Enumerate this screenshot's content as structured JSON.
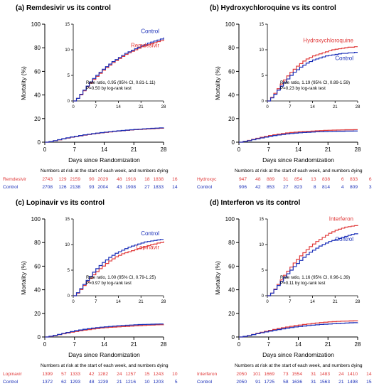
{
  "colors": {
    "treatment": "#e03a3a",
    "control": "#1a2fb8",
    "axis": "#000000"
  },
  "chart_data": [
    {
      "type": "line",
      "title": "(a) Remdesivir vs its control",
      "xlabel": "Days since Randomization",
      "ylabel": "Mortality (%)",
      "xlim": [
        0,
        28
      ],
      "ylim": [
        0,
        100
      ],
      "xticks": [
        "0",
        "7",
        "14",
        "21",
        "28"
      ],
      "yticks": [
        "0",
        "20",
        "40",
        "60",
        "80",
        "100"
      ],
      "inset": {
        "xlim": [
          0,
          28
        ],
        "ylim": [
          0,
          15
        ],
        "xticks": [
          "0",
          "7",
          "14",
          "21",
          "28"
        ],
        "yticks": [
          "0",
          "5",
          "10",
          "15"
        ]
      },
      "annotation": [
        "Rate ratio, 0.95 (95% CI, 0.81-1.11)",
        "P=0.50 by log-rank test"
      ],
      "legend": {
        "treatment": "Remdesivir",
        "control": "Control",
        "treatment_pos": "below",
        "control_pos": "above"
      },
      "series": [
        {
          "name": "Remdesivir",
          "role": "treatment",
          "x": [
            0,
            1,
            2,
            3,
            4,
            5,
            6,
            7,
            8,
            9,
            10,
            11,
            12,
            13,
            14,
            15,
            16,
            17,
            18,
            19,
            20,
            21,
            22,
            23,
            24,
            25,
            26,
            27,
            28
          ],
          "y": [
            0,
            0.5,
            1.2,
            2.0,
            2.8,
            3.5,
            4.2,
            4.8,
            5.4,
            6.0,
            6.5,
            7.0,
            7.5,
            7.9,
            8.3,
            8.7,
            9.1,
            9.4,
            9.7,
            10.0,
            10.3,
            10.6,
            10.8,
            11.0,
            11.2,
            11.4,
            11.6,
            11.8,
            12.0
          ]
        },
        {
          "name": "Control",
          "role": "control",
          "x": [
            0,
            1,
            2,
            3,
            4,
            5,
            6,
            7,
            8,
            9,
            10,
            11,
            12,
            13,
            14,
            15,
            16,
            17,
            18,
            19,
            20,
            21,
            22,
            23,
            24,
            25,
            26,
            27,
            28
          ],
          "y": [
            0,
            0.5,
            1.3,
            2.1,
            2.9,
            3.7,
            4.4,
            5.0,
            5.6,
            6.2,
            6.7,
            7.2,
            7.7,
            8.1,
            8.5,
            8.9,
            9.3,
            9.6,
            9.9,
            10.2,
            10.5,
            10.8,
            11.0,
            11.3,
            11.5,
            11.7,
            11.9,
            12.1,
            12.4
          ]
        }
      ],
      "risk_table": {
        "header": "Numbers at risk at the start of each week, and numbers dying",
        "rows": [
          {
            "label": "Remdesivir",
            "role": "treatment",
            "values": [
              "2743",
              "129",
              "2159",
              "90",
              "2029",
              "48",
              "1918",
              "18",
              "1838",
              "16"
            ]
          },
          {
            "label": "Control",
            "role": "control",
            "values": [
              "2708",
              "126",
              "2138",
              "93",
              "2004",
              "43",
              "1908",
              "27",
              "1833",
              "14"
            ]
          }
        ]
      }
    },
    {
      "type": "line",
      "title": "(b) Hydroxychloroquine vs its control",
      "xlabel": "Days since Randomization",
      "ylabel": "Mortality (%)",
      "xlim": [
        0,
        28
      ],
      "ylim": [
        0,
        100
      ],
      "xticks": [
        "0",
        "7",
        "14",
        "21",
        "28"
      ],
      "yticks": [
        "0",
        "20",
        "40",
        "60",
        "80",
        "100"
      ],
      "inset": {
        "xlim": [
          0,
          28
        ],
        "ylim": [
          0,
          15
        ],
        "xticks": [
          "0",
          "7",
          "14",
          "21",
          "28"
        ],
        "yticks": [
          "0",
          "5",
          "10",
          "15"
        ]
      },
      "annotation": [
        "Rate ratio, 1.19 (95% CI, 0.89-1.59)",
        "P=0.23 by log-rank test"
      ],
      "legend": {
        "treatment": "Hydroxychloroquine",
        "control": "Control",
        "treatment_pos": "above",
        "control_pos": "below"
      },
      "series": [
        {
          "name": "Hydroxychloroquine",
          "role": "treatment",
          "x": [
            0,
            1,
            2,
            3,
            4,
            5,
            6,
            7,
            8,
            9,
            10,
            11,
            12,
            13,
            14,
            15,
            16,
            17,
            18,
            19,
            20,
            21,
            22,
            23,
            24,
            25,
            26,
            27,
            28
          ],
          "y": [
            0,
            0.7,
            1.5,
            2.4,
            3.3,
            4.1,
            4.9,
            5.6,
            6.2,
            6.8,
            7.3,
            7.8,
            8.2,
            8.5,
            8.8,
            9.0,
            9.2,
            9.4,
            9.6,
            9.8,
            10.0,
            10.1,
            10.2,
            10.3,
            10.4,
            10.5,
            10.5,
            10.6,
            10.6
          ]
        },
        {
          "name": "Control",
          "role": "control",
          "x": [
            0,
            1,
            2,
            3,
            4,
            5,
            6,
            7,
            8,
            9,
            10,
            11,
            12,
            13,
            14,
            15,
            16,
            17,
            18,
            19,
            20,
            21,
            22,
            23,
            24,
            25,
            26,
            27,
            28
          ],
          "y": [
            0,
            0.6,
            1.3,
            2.1,
            2.9,
            3.6,
            4.3,
            5.0,
            5.6,
            6.1,
            6.6,
            7.0,
            7.4,
            7.7,
            8.0,
            8.2,
            8.4,
            8.6,
            8.8,
            8.9,
            9.0,
            9.1,
            9.2,
            9.3,
            9.3,
            9.4,
            9.4,
            9.5,
            9.5
          ]
        }
      ],
      "risk_table": {
        "header": "Numbers at risk at the start of each week, and numbers dying",
        "rows": [
          {
            "label": "Hydroxyc",
            "role": "treatment",
            "values": [
              "947",
              "48",
              "889",
              "31",
              "854",
              "13",
              "838",
              "6",
              "833",
              "6"
            ]
          },
          {
            "label": "Control",
            "role": "control",
            "values": [
              "906",
              "42",
              "853",
              "27",
              "823",
              "8",
              "814",
              "4",
              "809",
              "3"
            ]
          }
        ]
      }
    },
    {
      "type": "line",
      "title": "(c) Lopinavir vs its control",
      "xlabel": "Days since Randomization",
      "ylabel": "Mortality (%)",
      "xlim": [
        0,
        28
      ],
      "ylim": [
        0,
        100
      ],
      "xticks": [
        "0",
        "7",
        "14",
        "21",
        "28"
      ],
      "yticks": [
        "0",
        "20",
        "40",
        "60",
        "80",
        "100"
      ],
      "inset": {
        "xlim": [
          0,
          28
        ],
        "ylim": [
          0,
          15
        ],
        "xticks": [
          "0",
          "7",
          "14",
          "21",
          "28"
        ],
        "yticks": [
          "0",
          "5",
          "10",
          "15"
        ]
      },
      "annotation": [
        "Rate ratio, 1.00 (95% CI, 0.79-1.25)",
        "P=0.97 by log-rank test"
      ],
      "legend": {
        "treatment": "Lopinavir",
        "control": "Control",
        "treatment_pos": "below",
        "control_pos": "above"
      },
      "series": [
        {
          "name": "Lopinavir",
          "role": "treatment",
          "x": [
            0,
            1,
            2,
            3,
            4,
            5,
            6,
            7,
            8,
            9,
            10,
            11,
            12,
            13,
            14,
            15,
            16,
            17,
            18,
            19,
            20,
            21,
            22,
            23,
            24,
            25,
            26,
            27,
            28
          ],
          "y": [
            0,
            0.5,
            1.2,
            2.0,
            2.7,
            3.4,
            4.1,
            4.7,
            5.3,
            5.8,
            6.3,
            6.8,
            7.2,
            7.6,
            7.9,
            8.2,
            8.4,
            8.6,
            8.8,
            9.0,
            9.2,
            9.4,
            9.6,
            9.8,
            10.0,
            10.1,
            10.3,
            10.4,
            10.6
          ]
        },
        {
          "name": "Control",
          "role": "control",
          "x": [
            0,
            1,
            2,
            3,
            4,
            5,
            6,
            7,
            8,
            9,
            10,
            11,
            12,
            13,
            14,
            15,
            16,
            17,
            18,
            19,
            20,
            21,
            22,
            23,
            24,
            25,
            26,
            27,
            28
          ],
          "y": [
            0,
            0.6,
            1.4,
            2.2,
            3.0,
            3.8,
            4.6,
            5.3,
            5.9,
            6.5,
            7.0,
            7.5,
            7.9,
            8.3,
            8.6,
            8.9,
            9.2,
            9.5,
            9.7,
            9.9,
            10.1,
            10.3,
            10.5,
            10.6,
            10.7,
            10.8,
            10.9,
            11.0,
            11.0
          ]
        }
      ],
      "risk_table": {
        "header": "Numbers at risk at the start of each week, and numbers dying",
        "rows": [
          {
            "label": "Lopinavir",
            "role": "treatment",
            "values": [
              "1399",
              "57",
              "1333",
              "42",
              "1282",
              "24",
              "1257",
              "15",
              "1243",
              "10"
            ]
          },
          {
            "label": "Control",
            "role": "control",
            "values": [
              "1372",
              "62",
              "1293",
              "48",
              "1239",
              "21",
              "1216",
              "10",
              "1203",
              "5"
            ]
          }
        ]
      }
    },
    {
      "type": "line",
      "title": "(d) Interferon vs its control",
      "xlabel": "Days since Randomization",
      "ylabel": "Mortality (%)",
      "xlim": [
        0,
        28
      ],
      "ylim": [
        0,
        100
      ],
      "xticks": [
        "0",
        "7",
        "14",
        "21",
        "28"
      ],
      "yticks": [
        "0",
        "20",
        "40",
        "60",
        "80",
        "100"
      ],
      "inset": {
        "xlim": [
          0,
          28
        ],
        "ylim": [
          0,
          15
        ],
        "xticks": [
          "0",
          "7",
          "14",
          "21",
          "28"
        ],
        "yticks": [
          "0",
          "5",
          "10",
          "15"
        ]
      },
      "annotation": [
        "Rate ratio, 1.16 (95% CI, 0.96-1.39)",
        "P=0.11 by log-rank test"
      ],
      "legend": {
        "treatment": "Interferon",
        "control": "Control",
        "treatment_pos": "above",
        "control_pos": "below"
      },
      "series": [
        {
          "name": "Interferon",
          "role": "treatment",
          "x": [
            0,
            1,
            2,
            3,
            4,
            5,
            6,
            7,
            8,
            9,
            10,
            11,
            12,
            13,
            14,
            15,
            16,
            17,
            18,
            19,
            20,
            21,
            22,
            23,
            24,
            25,
            26,
            27,
            28
          ],
          "y": [
            0,
            0.5,
            1.3,
            2.2,
            3.1,
            4.0,
            4.8,
            5.6,
            6.4,
            7.1,
            7.8,
            8.4,
            9.0,
            9.6,
            10.1,
            10.6,
            11.0,
            11.4,
            11.8,
            12.2,
            12.5,
            12.8,
            13.0,
            13.2,
            13.4,
            13.5,
            13.6,
            13.7,
            13.8
          ]
        },
        {
          "name": "Control",
          "role": "control",
          "x": [
            0,
            1,
            2,
            3,
            4,
            5,
            6,
            7,
            8,
            9,
            10,
            11,
            12,
            13,
            14,
            15,
            16,
            17,
            18,
            19,
            20,
            21,
            22,
            23,
            24,
            25,
            26,
            27,
            28
          ],
          "y": [
            0,
            0.5,
            1.2,
            2.0,
            2.8,
            3.6,
            4.3,
            5.0,
            5.7,
            6.3,
            6.9,
            7.5,
            8.0,
            8.5,
            8.9,
            9.3,
            9.7,
            10.0,
            10.3,
            10.6,
            10.8,
            11.0,
            11.2,
            11.4,
            11.6,
            11.8,
            12.0,
            12.1,
            12.2
          ]
        }
      ],
      "risk_table": {
        "header": "Numbers at risk at the start of each week, and numbers dying",
        "rows": [
          {
            "label": "Interferon",
            "role": "treatment",
            "values": [
              "2050",
              "101",
              "1669",
              "73",
              "1554",
              "31",
              "1483",
              "24",
              "1410",
              "14"
            ]
          },
          {
            "label": "Control",
            "role": "control",
            "values": [
              "2050",
              "91",
              "1725",
              "58",
              "1636",
              "31",
              "1563",
              "21",
              "1498",
              "15"
            ]
          }
        ]
      }
    }
  ]
}
